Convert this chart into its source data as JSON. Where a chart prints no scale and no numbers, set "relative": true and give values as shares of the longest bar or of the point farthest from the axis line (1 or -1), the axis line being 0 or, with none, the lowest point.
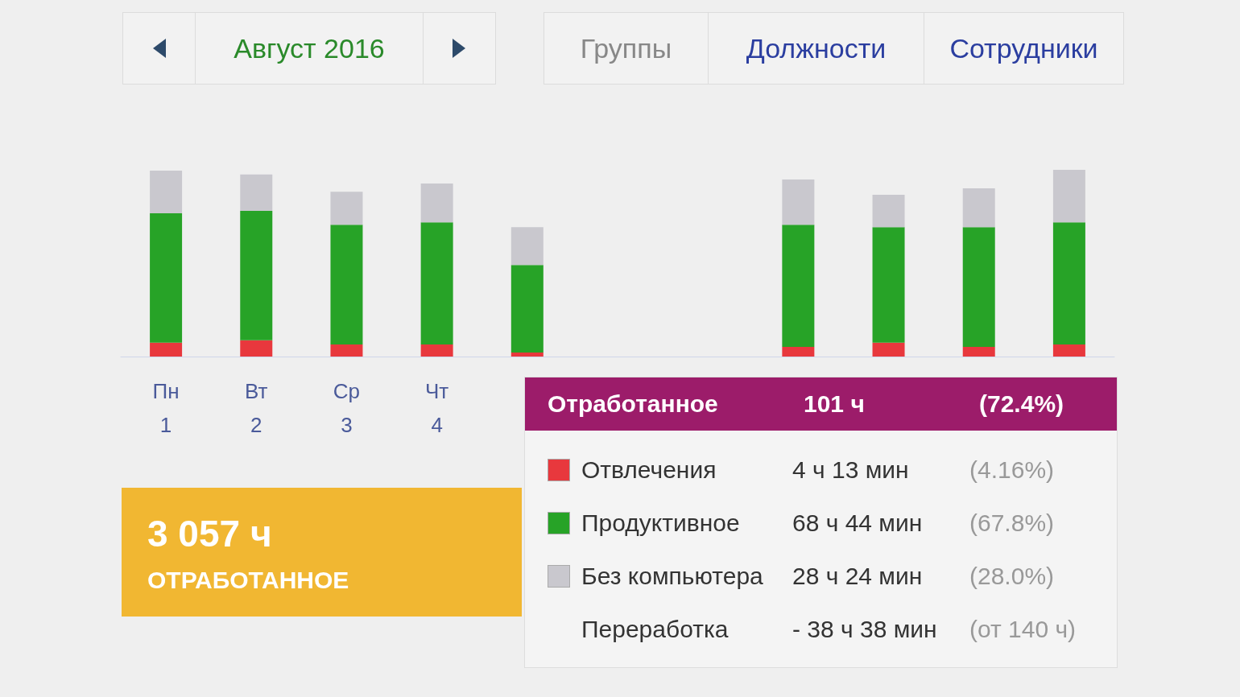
{
  "chart_data": {
    "type": "bar",
    "stacked": true,
    "relative": true,
    "legend": "bottom right",
    "categories": [
      "Пн\n1",
      "Вт\n2",
      "Ср\n3",
      "Чт\n4",
      null,
      null,
      null,
      null,
      null,
      null,
      null
    ],
    "series": [
      {
        "name": "Отвлечения",
        "color": "#e8383d",
        "values": [
          0.074,
          0.087,
          0.065,
          0.065,
          0.022,
          null,
          null,
          0.052,
          0.074,
          0.052,
          0.065
        ]
      },
      {
        "name": "Продуктивное",
        "color": "#27a327",
        "values": [
          0.693,
          0.693,
          0.641,
          0.654,
          0.468,
          null,
          null,
          0.654,
          0.619,
          0.641,
          0.654
        ]
      },
      {
        "name": "Без компьютера",
        "color": "#c9c8ce",
        "values": [
          0.229,
          0.195,
          0.177,
          0.208,
          0.203,
          null,
          null,
          0.242,
          0.173,
          0.208,
          0.281
        ]
      }
    ],
    "annotations": [
      "Август 2016",
      "Группы",
      "Должности",
      "Сотрудники",
      "3 057 ч",
      "ОТРАБОТАННОЕ",
      "Отработанное",
      "101 ч",
      "(72.4%)",
      "4 ч 13 мин",
      "(4.16%)",
      "68 ч 44 мин",
      "(67.8%)",
      "28 ч 24 мин",
      "(28.0%)",
      "Переработка",
      "- 38 ч 38 мин",
      "(от 140 ч)"
    ]
  }
}
